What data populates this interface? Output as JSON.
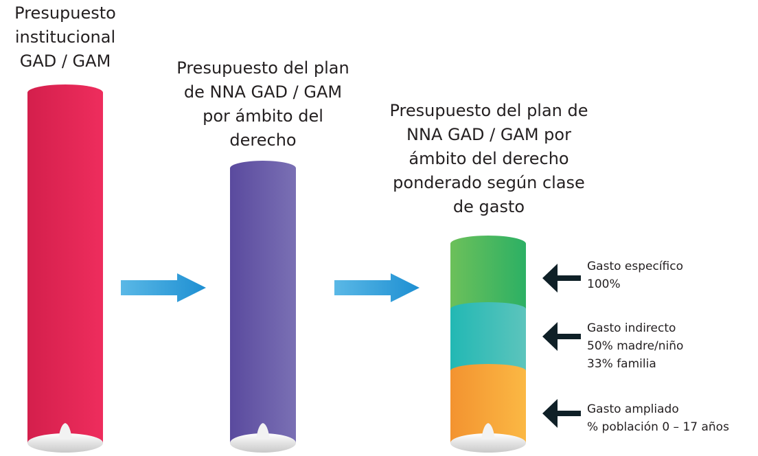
{
  "columns": [
    {
      "title_lines": [
        "Presupuesto",
        "institucional",
        "GAD / GAM"
      ]
    },
    {
      "title_lines": [
        "Presupuesto del plan",
        "de NNA GAD / GAM",
        "por ámbito del",
        "derecho"
      ]
    },
    {
      "title_lines": [
        "Presupuesto del plan de",
        "NNA GAD / GAM por",
        "ámbito del derecho",
        "ponderado según clase",
        "de gasto"
      ]
    }
  ],
  "labels": [
    {
      "lines": [
        "Gasto específico",
        "100%"
      ]
    },
    {
      "lines": [
        "Gasto indirecto",
        "50% madre/niño",
        "33% familia"
      ]
    },
    {
      "lines": [
        "Gasto ampliado",
        "% población 0 – 17 años"
      ]
    }
  ]
}
